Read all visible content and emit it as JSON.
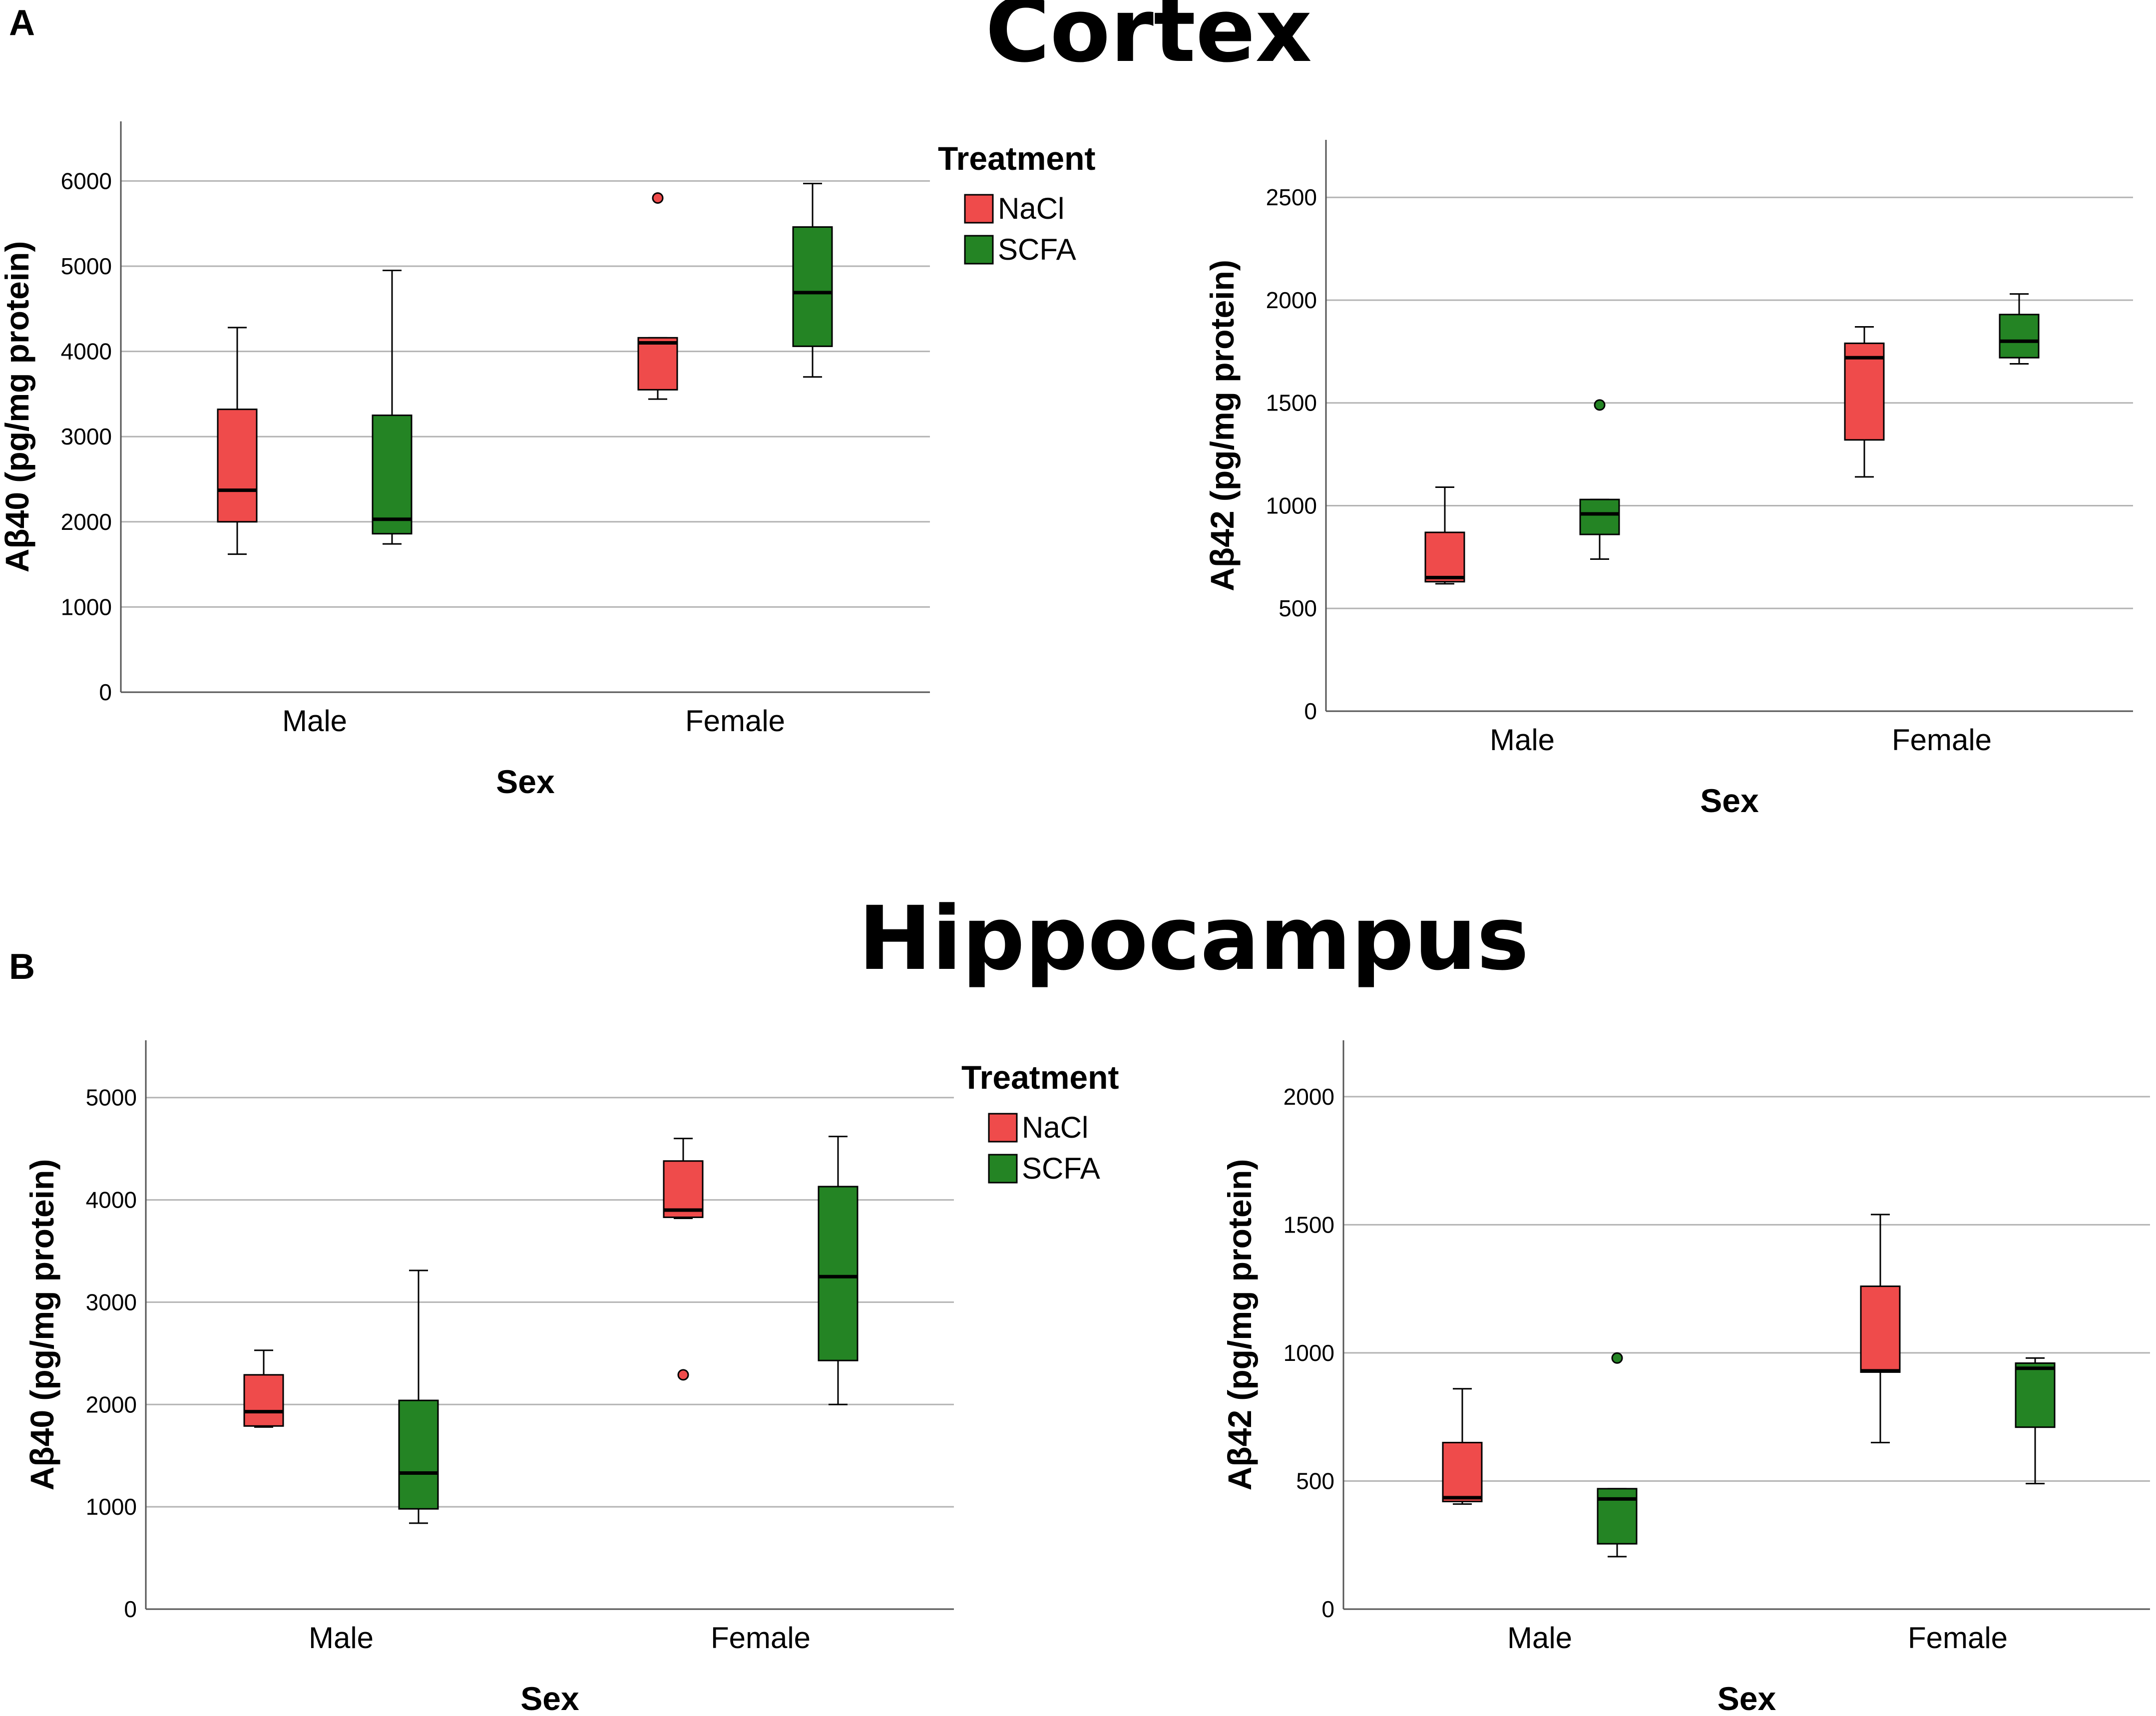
{
  "figure": {
    "panel_a": {
      "letter": "A",
      "title": "Cortex"
    },
    "panel_b": {
      "letter": "B",
      "title": "Hippocampus"
    }
  },
  "colors": {
    "nacl": "#ef4b4b",
    "scfa": "#248424",
    "grid": "#b4b4b4",
    "axis": "#555555",
    "text": "#000000"
  },
  "chart_data": [
    {
      "id": "cortex_ab40",
      "type": "box",
      "ylabel": "Aβ40 (pg/mg protein)",
      "xlabel": "Sex",
      "ylim": [
        0,
        6700
      ],
      "yticks": [
        0,
        1000,
        2000,
        3000,
        4000,
        5000,
        6000
      ],
      "categories": [
        "Male",
        "Female"
      ],
      "legend": {
        "title": "Treatment",
        "entries": [
          "NaCl",
          "SCFA"
        ]
      },
      "series": [
        {
          "name": "NaCl",
          "color_key": "nacl",
          "boxes": [
            {
              "category": "Male",
              "min": 1620,
              "q1": 2000,
              "median": 2370,
              "q3": 3320,
              "max": 4280,
              "outliers": []
            },
            {
              "category": "Female",
              "min": 3440,
              "q1": 3550,
              "median": 4100,
              "q3": 4160,
              "max": 4160,
              "outliers": [
                5800
              ]
            }
          ]
        },
        {
          "name": "SCFA",
          "color_key": "scfa",
          "boxes": [
            {
              "category": "Male",
              "min": 1740,
              "q1": 1860,
              "median": 2030,
              "q3": 3250,
              "max": 4950,
              "outliers": []
            },
            {
              "category": "Female",
              "min": 3700,
              "q1": 4060,
              "median": 4690,
              "q3": 5460,
              "max": 5970,
              "outliers": []
            }
          ]
        }
      ]
    },
    {
      "id": "cortex_ab42",
      "type": "box",
      "ylabel": "Aβ42 (pg/mg protein)",
      "xlabel": "Sex",
      "ylim": [
        0,
        2780
      ],
      "yticks": [
        0,
        500,
        1000,
        1500,
        2000,
        2500
      ],
      "categories": [
        "Male",
        "Female"
      ],
      "series": [
        {
          "name": "NaCl",
          "color_key": "nacl",
          "boxes": [
            {
              "category": "Male",
              "min": 620,
              "q1": 630,
              "median": 650,
              "q3": 870,
              "max": 1090,
              "outliers": []
            },
            {
              "category": "Female",
              "min": 1140,
              "q1": 1320,
              "median": 1720,
              "q3": 1790,
              "max": 1870,
              "outliers": []
            }
          ]
        },
        {
          "name": "SCFA",
          "color_key": "scfa",
          "boxes": [
            {
              "category": "Male",
              "min": 740,
              "q1": 860,
              "median": 960,
              "q3": 1030,
              "max": 1030,
              "outliers": [
                1490
              ]
            },
            {
              "category": "Female",
              "min": 1690,
              "q1": 1720,
              "median": 1800,
              "q3": 1930,
              "max": 2030,
              "outliers": []
            }
          ]
        }
      ]
    },
    {
      "id": "hippocampus_ab40",
      "type": "box",
      "ylabel": "Aβ40 (pg/mg protein)",
      "xlabel": "Sex",
      "ylim": [
        0,
        5560
      ],
      "yticks": [
        0,
        1000,
        2000,
        3000,
        4000,
        5000
      ],
      "categories": [
        "Male",
        "Female"
      ],
      "legend": {
        "title": "Treatment",
        "entries": [
          "NaCl",
          "SCFA"
        ]
      },
      "series": [
        {
          "name": "NaCl",
          "color_key": "nacl",
          "boxes": [
            {
              "category": "Male",
              "min": 1780,
              "q1": 1790,
              "median": 1930,
              "q3": 2290,
              "max": 2530,
              "outliers": []
            },
            {
              "category": "Female",
              "min": 3820,
              "q1": 3830,
              "median": 3900,
              "q3": 4380,
              "max": 4600,
              "outliers": [
                2290
              ]
            }
          ]
        },
        {
          "name": "SCFA",
          "color_key": "scfa",
          "boxes": [
            {
              "category": "Male",
              "min": 840,
              "q1": 980,
              "median": 1330,
              "q3": 2040,
              "max": 3310,
              "outliers": []
            },
            {
              "category": "Female",
              "min": 2000,
              "q1": 2430,
              "median": 3250,
              "q3": 4130,
              "max": 4620,
              "outliers": []
            }
          ]
        }
      ]
    },
    {
      "id": "hippocampus_ab42",
      "type": "box",
      "ylabel": "Aβ42 (pg/mg protein)",
      "xlabel": "Sex",
      "ylim": [
        0,
        2220
      ],
      "yticks": [
        0,
        500,
        1000,
        1500,
        2000
      ],
      "categories": [
        "Male",
        "Female"
      ],
      "series": [
        {
          "name": "NaCl",
          "color_key": "nacl",
          "boxes": [
            {
              "category": "Male",
              "min": 410,
              "q1": 420,
              "median": 435,
              "q3": 650,
              "max": 860,
              "outliers": []
            },
            {
              "category": "Female",
              "min": 650,
              "q1": 925,
              "median": 930,
              "q3": 1260,
              "max": 1540,
              "outliers": []
            }
          ]
        },
        {
          "name": "SCFA",
          "color_key": "scfa",
          "boxes": [
            {
              "category": "Male",
              "min": 205,
              "q1": 255,
              "median": 430,
              "q3": 470,
              "max": 470,
              "outliers": [
                980
              ]
            },
            {
              "category": "Female",
              "min": 490,
              "q1": 710,
              "median": 940,
              "q3": 960,
              "max": 980,
              "outliers": []
            }
          ]
        }
      ]
    }
  ]
}
